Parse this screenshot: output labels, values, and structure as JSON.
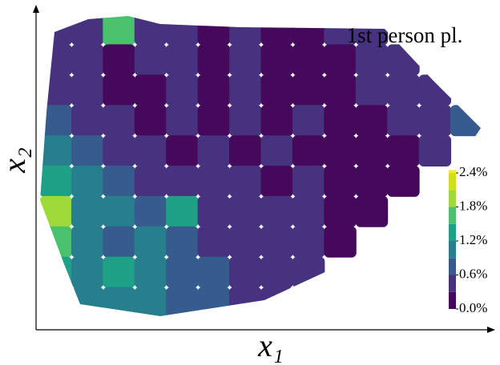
{
  "chart_data": {
    "type": "contour",
    "title": "1st person pl.",
    "x_label": "x₁",
    "y_label": "x₂",
    "z": [
      [
        0.3,
        0.4,
        1.5,
        0.5,
        0.3,
        0.2,
        0.3,
        0.2,
        0.2,
        0.3,
        0.4,
        null,
        null,
        null
      ],
      [
        0.4,
        0.3,
        0.2,
        0.3,
        0.5,
        0.2,
        0.4,
        0.2,
        0.2,
        0.2,
        0.3,
        0.4,
        null,
        null
      ],
      [
        0.5,
        0.3,
        0.2,
        0.2,
        0.4,
        0.2,
        0.5,
        0.2,
        0.2,
        0.2,
        0.3,
        0.4,
        0.5,
        null
      ],
      [
        0.8,
        0.5,
        0.3,
        0.2,
        0.3,
        0.2,
        0.4,
        0.2,
        0.3,
        0.2,
        0.2,
        0.3,
        0.5,
        0.6
      ],
      [
        1.0,
        0.8,
        0.5,
        0.3,
        0.2,
        0.3,
        0.2,
        0.4,
        0.2,
        0.2,
        0.2,
        0.2,
        0.3,
        null
      ],
      [
        1.3,
        1.0,
        0.7,
        0.5,
        0.4,
        0.3,
        0.3,
        0.2,
        0.3,
        0.2,
        0.2,
        0.2,
        null,
        null
      ],
      [
        2.0,
        1.1,
        0.9,
        0.7,
        1.3,
        0.5,
        0.4,
        0.3,
        0.4,
        0.2,
        0.2,
        null,
        null,
        null
      ],
      [
        1.6,
        1.0,
        0.8,
        0.9,
        0.6,
        0.5,
        0.4,
        0.5,
        0.3,
        0.2,
        null,
        null,
        null,
        null
      ],
      [
        1.2,
        1.0,
        1.2,
        1.0,
        0.8,
        0.6,
        0.5,
        0.4,
        0.3,
        null,
        null,
        null,
        null,
        null
      ],
      [
        null,
        0.9,
        1.0,
        1.1,
        0.8,
        0.7,
        0.5,
        0.5,
        null,
        null,
        null,
        null,
        null,
        null
      ]
    ],
    "levels": [
      0,
      0.3,
      0.6,
      0.9,
      1.2,
      1.5,
      1.8,
      2.1,
      2.4,
      2.7
    ],
    "colors": [
      "#45085b",
      "#46327e",
      "#365c8d",
      "#277f8e",
      "#1fa187",
      "#4ac16d",
      "#a0da39",
      "#d0e11c",
      "#fde725"
    ],
    "clim": [
      0,
      2.45
    ],
    "cticks": [
      {
        "value": 0,
        "label": "0.0%"
      },
      {
        "value": 0.6,
        "label": "0.6%"
      },
      {
        "value": 1.2,
        "label": "1.2%"
      },
      {
        "value": 1.8,
        "label": "1.8%"
      },
      {
        "value": 2.4,
        "label": "2.4%"
      }
    ]
  }
}
